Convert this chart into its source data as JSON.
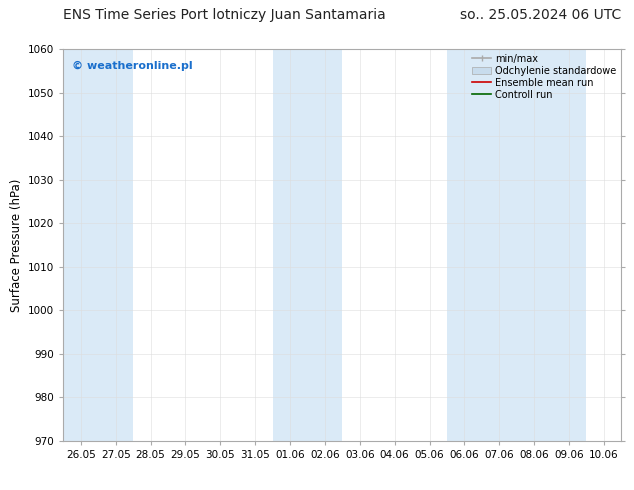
{
  "title_left": "ENS Time Series Port lotniczy Juan Santamaria",
  "title_right": "so.. 25.05.2024 06 UTC",
  "ylabel": "Surface Pressure (hPa)",
  "watermark": "© weatheronline.pl",
  "watermark_color": "#1a6fcc",
  "ylim": [
    970,
    1060
  ],
  "yticks": [
    970,
    980,
    990,
    1000,
    1010,
    1020,
    1030,
    1040,
    1050,
    1060
  ],
  "xtick_labels": [
    "26.05",
    "27.05",
    "28.05",
    "29.05",
    "30.05",
    "31.05",
    "01.06",
    "02.06",
    "03.06",
    "04.06",
    "05.06",
    "06.06",
    "07.06",
    "08.06",
    "09.06",
    "10.06"
  ],
  "bg_color": "#ffffff",
  "plot_bg_color": "#ffffff",
  "shaded_band_color": "#daeaf7",
  "shaded_columns": [
    0,
    1,
    6,
    7,
    11,
    12,
    13,
    14
  ],
  "legend_labels": [
    "min/max",
    "Odchylenie standardowe",
    "Ensemble mean run",
    "Controll run"
  ],
  "legend_colors_line": [
    "#aaaaaa",
    "#bbccdd",
    "#ff0000",
    "#009900"
  ],
  "grid_color": "#dddddd",
  "spine_color": "#aaaaaa",
  "title_fontsize": 10,
  "tick_fontsize": 7.5,
  "ylabel_fontsize": 8.5,
  "watermark_fontsize": 8,
  "legend_fontsize": 7
}
